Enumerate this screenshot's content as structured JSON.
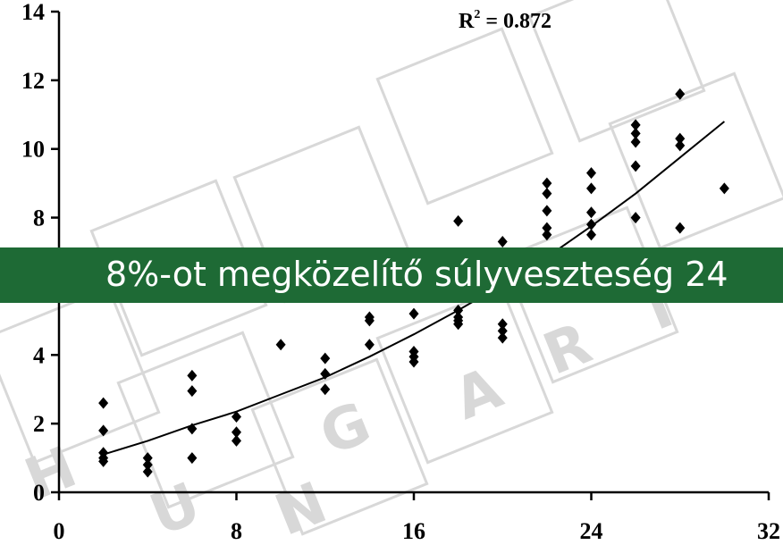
{
  "chart_data": {
    "type": "scatter",
    "title": "",
    "xlabel": "",
    "ylabel": "",
    "xlim": [
      0,
      32
    ],
    "ylim": [
      0,
      14
    ],
    "x_ticks": [
      0,
      8,
      16,
      24,
      32
    ],
    "y_ticks": [
      0,
      2,
      4,
      6,
      8,
      10,
      12,
      14
    ],
    "x_tick_labels": [
      "0",
      "8",
      "16",
      "24",
      "32"
    ],
    "y_tick_labels": [
      "0",
      "2",
      "4",
      "6",
      "8",
      "10",
      "12",
      "14"
    ],
    "grid": false,
    "legend": "none",
    "marker": "diamond",
    "marker_color": "#000000",
    "annotation": {
      "r2_prefix": "R",
      "r2_exp": "2",
      "r2_value": " = 0.872"
    },
    "trendline": [
      [
        2,
        1.1
      ],
      [
        4,
        1.5
      ],
      [
        6,
        1.95
      ],
      [
        8,
        2.35
      ],
      [
        10,
        2.85
      ],
      [
        12,
        3.35
      ],
      [
        14,
        3.95
      ],
      [
        16,
        4.6
      ],
      [
        18,
        5.3
      ],
      [
        20,
        6.05
      ],
      [
        22,
        6.85
      ],
      [
        24,
        7.75
      ],
      [
        26,
        8.7
      ],
      [
        28,
        9.75
      ],
      [
        30,
        10.8
      ]
    ],
    "points": [
      [
        2,
        2.6
      ],
      [
        2,
        1.8
      ],
      [
        2,
        1.15
      ],
      [
        2,
        1.0
      ],
      [
        2,
        0.9
      ],
      [
        4,
        1.0
      ],
      [
        4,
        0.8
      ],
      [
        4,
        0.6
      ],
      [
        6,
        3.4
      ],
      [
        6,
        2.95
      ],
      [
        6,
        1.85
      ],
      [
        6,
        1.0
      ],
      [
        8,
        2.2
      ],
      [
        8,
        1.75
      ],
      [
        8,
        1.5
      ],
      [
        10,
        4.3
      ],
      [
        12,
        3.9
      ],
      [
        12,
        3.45
      ],
      [
        12,
        3.0
      ],
      [
        14,
        5.1
      ],
      [
        14,
        5.0
      ],
      [
        14,
        4.3
      ],
      [
        16,
        5.2
      ],
      [
        16,
        4.1
      ],
      [
        16,
        3.95
      ],
      [
        16,
        3.8
      ],
      [
        18,
        7.9
      ],
      [
        18,
        5.3
      ],
      [
        18,
        5.1
      ],
      [
        18,
        5.0
      ],
      [
        18,
        4.9
      ],
      [
        20,
        7.3
      ],
      [
        20,
        4.9
      ],
      [
        20,
        4.7
      ],
      [
        20,
        4.5
      ],
      [
        22,
        9.0
      ],
      [
        22,
        8.7
      ],
      [
        22,
        8.2
      ],
      [
        22,
        7.7
      ],
      [
        22,
        7.5
      ],
      [
        24,
        9.3
      ],
      [
        24,
        8.85
      ],
      [
        24,
        8.15
      ],
      [
        24,
        7.8
      ],
      [
        24,
        7.5
      ],
      [
        26,
        10.7
      ],
      [
        26,
        10.45
      ],
      [
        26,
        10.2
      ],
      [
        26,
        9.5
      ],
      [
        26,
        8.0
      ],
      [
        28,
        11.6
      ],
      [
        28,
        10.3
      ],
      [
        28,
        10.1
      ],
      [
        28,
        7.7
      ],
      [
        30,
        8.85
      ]
    ]
  },
  "banner": {
    "text": "8%-ot megközelítő súlyveszteség 24",
    "color": "#1e6a35"
  },
  "watermark": {
    "letters": [
      "H",
      "U",
      "N",
      "G",
      "A",
      "R",
      "I"
    ],
    "color": "#d8d8d8"
  }
}
